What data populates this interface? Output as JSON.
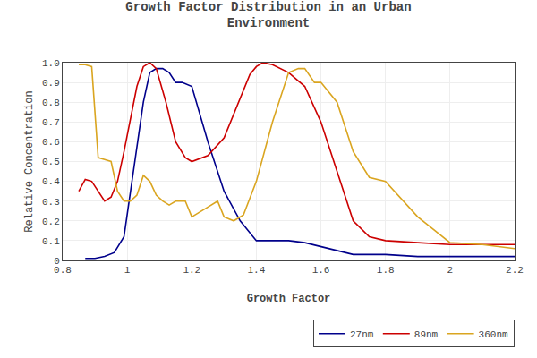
{
  "chart_data": {
    "type": "line",
    "title": "Growth Factor Distribution in an Urban\nEnvironment",
    "x_label": "Growth Factor",
    "y_label": "Relative Concentration",
    "xlim": [
      0.8,
      2.2
    ],
    "ylim": [
      0,
      1
    ],
    "xticks": [
      0.8,
      1,
      1.2,
      1.4,
      1.6,
      1.8,
      2,
      2.2
    ],
    "yticks": [
      0,
      0.1,
      0.2,
      0.3,
      0.4,
      0.5,
      0.6,
      0.7,
      0.8,
      0.9,
      {
        "value": 1,
        "label": "1.0"
      }
    ],
    "grid": true,
    "legend": "lower right",
    "series": [
      {
        "name": "27nm",
        "color": "#00008B",
        "x": [
          0.87,
          0.9,
          0.93,
          0.96,
          0.99,
          1.02,
          1.05,
          1.07,
          1.09,
          1.11,
          1.13,
          1.15,
          1.17,
          1.2,
          1.25,
          1.3,
          1.35,
          1.4,
          1.45,
          1.5,
          1.55,
          1.6,
          1.65,
          1.7,
          1.8,
          1.9,
          2.0,
          2.1,
          2.2
        ],
        "values": [
          0.01,
          0.01,
          0.02,
          0.04,
          0.12,
          0.45,
          0.8,
          0.95,
          0.97,
          0.97,
          0.95,
          0.9,
          0.9,
          0.88,
          0.6,
          0.35,
          0.2,
          0.1,
          0.1,
          0.1,
          0.09,
          0.07,
          0.05,
          0.03,
          0.03,
          0.02,
          0.02,
          0.02,
          0.02
        ]
      },
      {
        "name": "89nm",
        "color": "#CC0000",
        "x": [
          0.85,
          0.87,
          0.89,
          0.91,
          0.93,
          0.95,
          0.97,
          0.99,
          1.01,
          1.03,
          1.05,
          1.07,
          1.09,
          1.12,
          1.15,
          1.18,
          1.2,
          1.25,
          1.3,
          1.35,
          1.38,
          1.4,
          1.42,
          1.45,
          1.5,
          1.55,
          1.6,
          1.65,
          1.7,
          1.75,
          1.8,
          1.9,
          2.0,
          2.1,
          2.2
        ],
        "values": [
          0.35,
          0.41,
          0.4,
          0.35,
          0.3,
          0.32,
          0.4,
          0.55,
          0.72,
          0.88,
          0.98,
          1.0,
          0.97,
          0.8,
          0.6,
          0.52,
          0.5,
          0.53,
          0.62,
          0.82,
          0.94,
          0.98,
          1.0,
          0.99,
          0.95,
          0.88,
          0.7,
          0.45,
          0.2,
          0.12,
          0.1,
          0.09,
          0.08,
          0.08,
          0.08
        ]
      },
      {
        "name": "360nm",
        "color": "#DAA520",
        "x": [
          0.85,
          0.87,
          0.89,
          0.91,
          0.93,
          0.95,
          0.97,
          0.99,
          1.01,
          1.03,
          1.05,
          1.07,
          1.09,
          1.11,
          1.13,
          1.15,
          1.18,
          1.2,
          1.25,
          1.28,
          1.3,
          1.33,
          1.36,
          1.4,
          1.45,
          1.5,
          1.53,
          1.55,
          1.58,
          1.6,
          1.65,
          1.7,
          1.75,
          1.8,
          1.9,
          2.0,
          2.1,
          2.2
        ],
        "values": [
          0.99,
          0.99,
          0.98,
          0.52,
          0.51,
          0.5,
          0.35,
          0.3,
          0.3,
          0.33,
          0.43,
          0.4,
          0.33,
          0.3,
          0.28,
          0.3,
          0.3,
          0.22,
          0.27,
          0.3,
          0.22,
          0.2,
          0.23,
          0.4,
          0.7,
          0.95,
          0.97,
          0.97,
          0.9,
          0.9,
          0.8,
          0.55,
          0.42,
          0.4,
          0.22,
          0.09,
          0.08,
          0.06
        ]
      }
    ]
  }
}
